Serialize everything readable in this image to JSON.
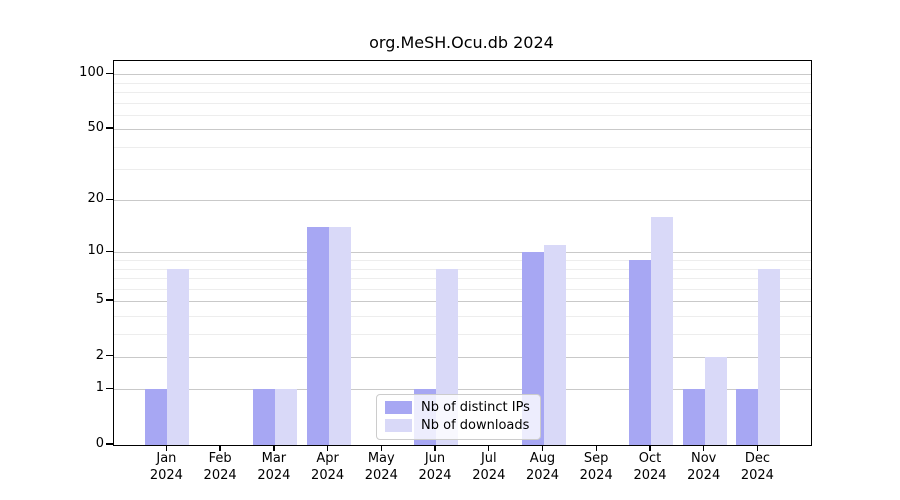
{
  "chart_data": {
    "type": "bar",
    "title": "org.MeSH.Ocu.db 2024",
    "categories": [
      "Jan 2024",
      "Feb 2024",
      "Mar 2024",
      "Apr 2024",
      "May 2024",
      "Jun 2024",
      "Jul 2024",
      "Aug 2024",
      "Sep 2024",
      "Oct 2024",
      "Nov 2024",
      "Dec 2024"
    ],
    "series": [
      {
        "name": "Nb of distinct IPs",
        "color": "#a7a7f3",
        "values": [
          1,
          0,
          1,
          14,
          0,
          1,
          0,
          10,
          0,
          9,
          1,
          1
        ]
      },
      {
        "name": "Nb of downloads",
        "color": "#d9d9f8",
        "values": [
          8,
          0,
          1,
          14,
          0,
          8,
          0,
          11,
          0,
          16,
          2,
          8
        ]
      }
    ],
    "xlabel": "",
    "ylabel": "",
    "yscale": "log1p",
    "ylim": [
      0,
      118
    ],
    "y_ticks": [
      0,
      1,
      2,
      5,
      10,
      20,
      50,
      100
    ],
    "y_minor_ticks": [
      3,
      4,
      6,
      7,
      8,
      9,
      30,
      40,
      60,
      70,
      80,
      90
    ],
    "grid": "on",
    "legend_position": "inside lower-center"
  },
  "colors": {
    "major_grid": "#c9c9c9",
    "minor_grid": "#ededed",
    "spine": "#000000",
    "background": "#ffffff"
  }
}
